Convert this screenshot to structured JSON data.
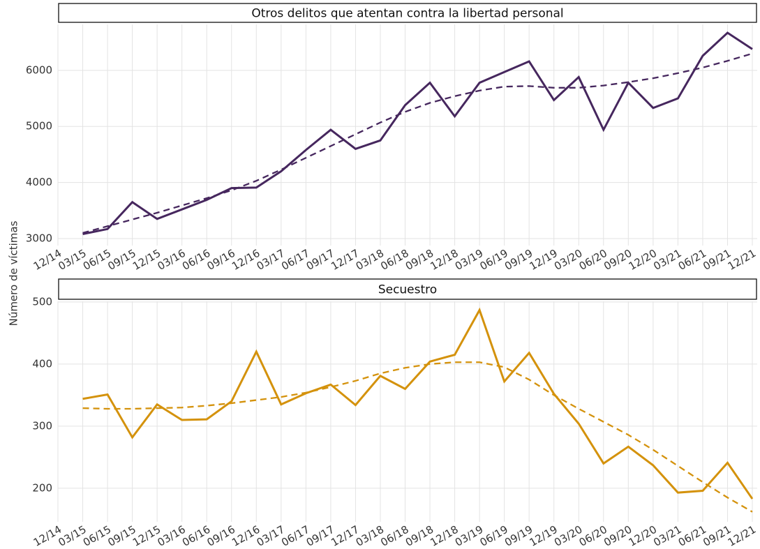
{
  "chart_data": [
    {
      "type": "line",
      "title": "Otros delitos que atentan contra la libertad personal",
      "ylabel": "Número de víctimas",
      "categories": [
        "12/14",
        "03/15",
        "06/15",
        "09/15",
        "12/15",
        "03/16",
        "06/16",
        "09/16",
        "12/16",
        "03/17",
        "06/17",
        "09/17",
        "12/17",
        "03/18",
        "06/18",
        "09/18",
        "12/18",
        "03/19",
        "06/19",
        "09/19",
        "12/19",
        "03/20",
        "06/20",
        "09/20",
        "12/20",
        "03/21",
        "06/21",
        "09/21",
        "12/21"
      ],
      "series": [
        {
          "color": "#46275e",
          "dash": false,
          "values": [
            null,
            3080,
            3170,
            3650,
            3350,
            3520,
            3690,
            3900,
            3910,
            4200,
            4580,
            4940,
            4600,
            4750,
            5380,
            5780,
            5180,
            5780,
            5970,
            6160,
            5470,
            5880,
            4940,
            5780,
            5330,
            5500,
            6260,
            6670,
            6380
          ]
        },
        {
          "color": "#46275e",
          "dash": true,
          "values": [
            null,
            3100,
            3220,
            3340,
            3460,
            3590,
            3720,
            3860,
            4030,
            4230,
            4440,
            4650,
            4860,
            5070,
            5260,
            5420,
            5540,
            5640,
            5710,
            5720,
            5690,
            5690,
            5730,
            5790,
            5860,
            5950,
            6050,
            6170,
            6300
          ]
        }
      ],
      "ylim": [
        2875,
        6820
      ],
      "yticks": [
        3000,
        4000,
        5000,
        6000
      ],
      "grid": true
    },
    {
      "type": "line",
      "title": "Secuestro",
      "categories": [
        "12/14",
        "03/15",
        "06/15",
        "09/15",
        "12/15",
        "03/16",
        "06/16",
        "09/16",
        "12/16",
        "03/17",
        "06/17",
        "09/17",
        "12/17",
        "03/18",
        "06/18",
        "09/18",
        "12/18",
        "03/19",
        "06/19",
        "09/19",
        "12/19",
        "03/20",
        "06/20",
        "09/20",
        "12/20",
        "03/21",
        "06/21",
        "09/21",
        "12/21"
      ],
      "series": [
        {
          "color": "#d4920c",
          "dash": false,
          "values": [
            null,
            344,
            351,
            282,
            335,
            310,
            311,
            340,
            420,
            335,
            353,
            367,
            334,
            381,
            360,
            404,
            415,
            487,
            372,
            418,
            352,
            304,
            240,
            267,
            237,
            193,
            196,
            241,
            183
          ]
        },
        {
          "color": "#d4920c",
          "dash": true,
          "values": [
            null,
            329,
            328,
            328,
            329,
            330,
            333,
            337,
            342,
            347,
            354,
            363,
            373,
            385,
            394,
            400,
            403,
            403,
            395,
            375,
            350,
            328,
            307,
            286,
            262,
            236,
            210,
            185,
            162
          ]
        }
      ],
      "ylim": [
        146,
        501
      ],
      "yticks": [
        200,
        300,
        400,
        500
      ],
      "grid": true
    }
  ]
}
